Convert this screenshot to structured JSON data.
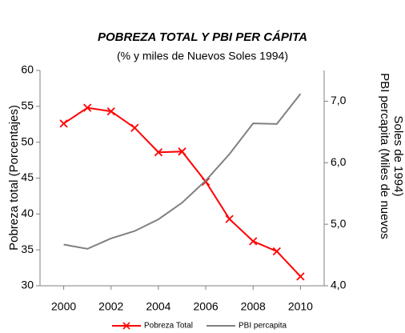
{
  "chart_data": {
    "type": "line",
    "title": "POBREZA TOTAL Y PBI PER CÁPITA",
    "subtitle": "(% y miles de Nuevos Soles 1994)",
    "ylabel": "Pobreza total (Porcentajes)",
    "y2label": [
      "PBI percapita (Miles de nuevos",
      "Soles de 1994)"
    ],
    "x": [
      2000,
      2001,
      2002,
      2003,
      2004,
      2005,
      2006,
      2007,
      2008,
      2009,
      2010
    ],
    "xlim": [
      1999,
      2011
    ],
    "xticks": [
      2000,
      2002,
      2004,
      2006,
      2008,
      2010
    ],
    "ylim": [
      30,
      60
    ],
    "yticks": [
      30,
      35,
      40,
      45,
      50,
      55,
      60
    ],
    "y2lim": [
      4.0,
      7.5
    ],
    "y2ticks": [
      {
        "value": 4.0,
        "label": "4,0"
      },
      {
        "value": 5.0,
        "label": "5,0"
      },
      {
        "value": 6.0,
        "label": "6,0"
      },
      {
        "value": 7.0,
        "label": "7,0"
      }
    ],
    "grid": false,
    "legend": "bottom",
    "series": [
      {
        "name": "Pobreza Total",
        "color": "#ff0000",
        "marker": "x",
        "values": [
          52.6,
          54.8,
          54.3,
          52.0,
          48.6,
          48.7,
          44.5,
          39.3,
          36.2,
          34.8,
          31.3
        ]
      },
      {
        "name": "PBI percapita",
        "color": "#808080",
        "axis": "y2",
        "values": [
          4.67,
          4.6,
          4.77,
          4.89,
          5.08,
          5.35,
          5.71,
          6.14,
          6.64,
          6.63,
          7.12
        ]
      }
    ]
  }
}
